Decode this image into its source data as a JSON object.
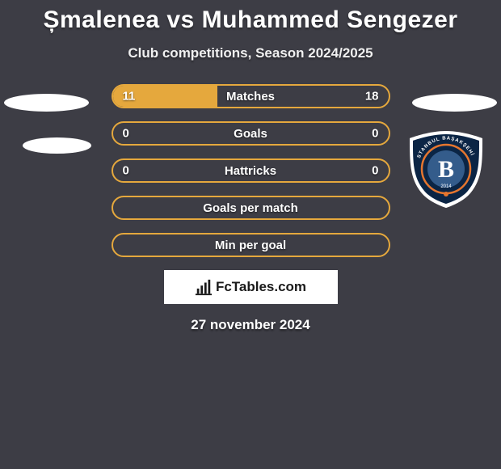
{
  "header": {
    "title": "Șmalenea vs Muhammed Sengezer",
    "subtitle": "Club competitions, Season 2024/2025"
  },
  "colors": {
    "background": "#3d3d45",
    "bar_border": "#e5a83d",
    "bar_fill": "#e5a83d",
    "text": "#ffffff",
    "team_badge_fill": "#0b2545",
    "team_badge_outer": "#ffffff",
    "team_badge_accent": "#e5762f",
    "team_badge_inner": "#345c8b"
  },
  "rows": [
    {
      "label": "Matches",
      "left": "11",
      "right": "18",
      "left_pct": 38,
      "right_pct": 0
    },
    {
      "label": "Goals",
      "left": "0",
      "right": "0",
      "left_pct": 0,
      "right_pct": 0
    },
    {
      "label": "Hattricks",
      "left": "0",
      "right": "0",
      "left_pct": 0,
      "right_pct": 0
    },
    {
      "label": "Goals per match",
      "left": "",
      "right": "",
      "left_pct": 0,
      "right_pct": 0
    },
    {
      "label": "Min per goal",
      "left": "",
      "right": "",
      "left_pct": 0,
      "right_pct": 0
    }
  ],
  "team_badge": {
    "top_text": "ISTANBUL BAŞAKŞEHİR",
    "initial": "B",
    "year": "2014"
  },
  "footer": {
    "brand": "FcTables.com",
    "date": "27 november 2024"
  }
}
